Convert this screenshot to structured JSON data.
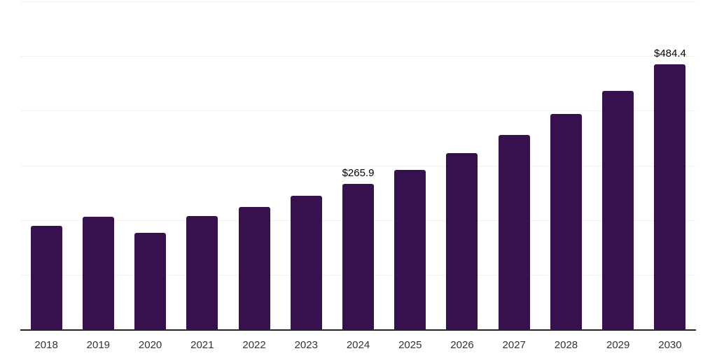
{
  "chart_data": {
    "type": "bar",
    "title": "",
    "xlabel": "",
    "ylabel": "",
    "categories": [
      "2018",
      "2019",
      "2020",
      "2021",
      "2022",
      "2023",
      "2024",
      "2025",
      "2026",
      "2027",
      "2028",
      "2029",
      "2030"
    ],
    "values": [
      189.0,
      205.5,
      176.0,
      207.5,
      223.5,
      244.0,
      265.9,
      292.0,
      322.5,
      356.0,
      393.5,
      436.5,
      484.4
    ],
    "data_labels": {
      "2024": "$265.9",
      "2030": "$484.4"
    },
    "ylim": [
      0,
      600
    ],
    "gridline_values": [
      100,
      200,
      300,
      400,
      500,
      600
    ],
    "grid": "horizontal",
    "legend_position": "none",
    "colors": {
      "bar": "#36114E",
      "axis_line": "#262626",
      "gridline": "#f0f0f0",
      "data_label": "#000000",
      "tick_label": "#333333",
      "background": "#ffffff"
    }
  }
}
